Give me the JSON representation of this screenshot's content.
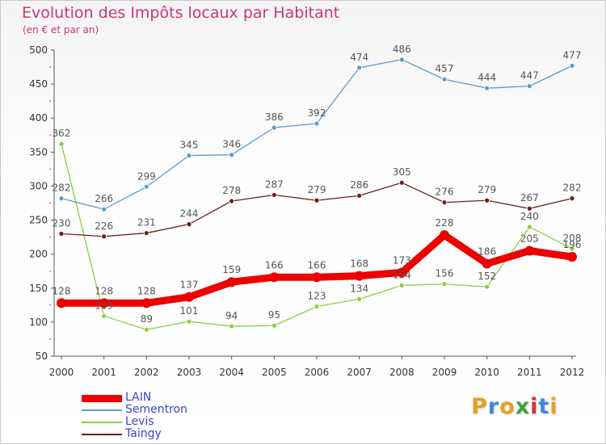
{
  "title": "Evolution des Impôts locaux par Habitant",
  "subtitle": "(en € et par an)",
  "logo": {
    "letters": [
      "P",
      "r",
      "o",
      "x",
      "i",
      "t",
      "i"
    ],
    "colors": [
      "#e8a020",
      "#3c8dd8",
      "#e8a020",
      "#3aa53a",
      "#e03030",
      "#3c8dd8",
      "#e8a020"
    ]
  },
  "chart_data": {
    "type": "line",
    "x": [
      "2000",
      "2001",
      "2002",
      "2003",
      "2004",
      "2005",
      "2006",
      "2007",
      "2008",
      "2009",
      "2010",
      "2011",
      "2012"
    ],
    "ylim": [
      50,
      500
    ],
    "yticks": [
      50,
      100,
      150,
      200,
      250,
      300,
      350,
      400,
      450,
      500
    ],
    "grid": false,
    "legend_position": "bottom-left",
    "series": [
      {
        "name": "LAIN",
        "color": "#ee0000",
        "values": [
          128,
          128,
          128,
          137,
          159,
          166,
          166,
          168,
          173,
          228,
          186,
          205,
          196
        ]
      },
      {
        "name": "Sementron",
        "color": "#5b9bd0",
        "values": [
          282,
          266,
          299,
          345,
          346,
          386,
          392,
          474,
          486,
          457,
          444,
          447,
          477
        ]
      },
      {
        "name": "Levis",
        "color": "#88d040",
        "values": [
          362,
          109,
          89,
          101,
          94,
          95,
          123,
          134,
          154,
          156,
          152,
          240,
          208
        ]
      },
      {
        "name": "Taingy",
        "color": "#6b1e1e",
        "values": [
          230,
          226,
          231,
          244,
          278,
          287,
          279,
          286,
          305,
          276,
          279,
          267,
          282
        ]
      }
    ]
  }
}
